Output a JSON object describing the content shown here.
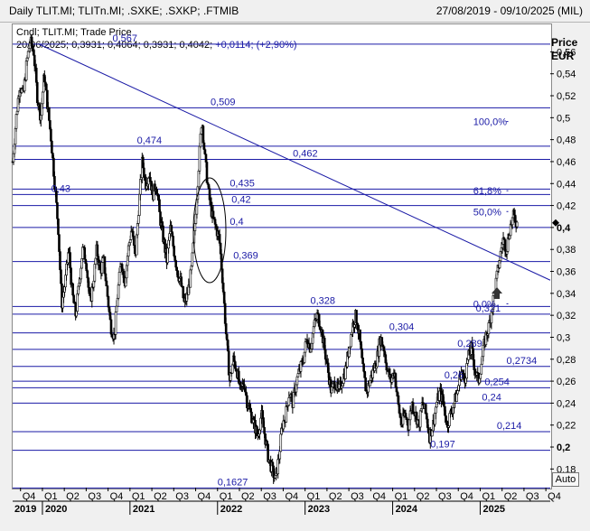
{
  "header": {
    "title": "Daily TLIT.MI; TLITn.MI; .SXKE; .SXKP; .FTMIB",
    "date_range": "27/08/2019 - 09/10/2025 (MIL)"
  },
  "legend": {
    "line1": "Cndl; TLIT.MI; Trade Price",
    "date": "20/06/2025;",
    "ohlc": "0,3931; 0,4064; 0,3931; 0,4042;",
    "change": "+0,0114; (+2,90%)"
  },
  "axis": {
    "price_title": "Price",
    "currency": "EUR",
    "auto_label": "Auto"
  },
  "colors": {
    "candles": "#000000",
    "hline": "#1a1aa6",
    "trend": "#1a1aa6",
    "grid": "#c8c8c8",
    "annotation_text": "#1a1aa6"
  },
  "chart_data": {
    "type": "candlestick",
    "y_ticks": [
      "0,18",
      "0,2",
      "0,22",
      "0,24",
      "0,26",
      "0,28",
      "0,3",
      "0,32",
      "0,34",
      "0,36",
      "0,38",
      "0,4",
      "0,42",
      "0,44",
      "0,46",
      "0,48",
      "0,5",
      "0,52",
      "0,54",
      "0,56"
    ],
    "y_tick_values": [
      0.18,
      0.2,
      0.22,
      0.24,
      0.26,
      0.28,
      0.3,
      0.32,
      0.34,
      0.36,
      0.38,
      0.4,
      0.42,
      0.44,
      0.46,
      0.48,
      0.5,
      0.52,
      0.54,
      0.56
    ],
    "ylim": [
      0.163,
      0.585
    ],
    "xlim": [
      2019.66,
      2025.8
    ],
    "x_quarter_labels": [
      "Q4",
      "Q1",
      "Q2",
      "Q3",
      "Q4",
      "Q1",
      "Q2",
      "Q3",
      "Q4",
      "Q1",
      "Q2",
      "Q3",
      "Q4",
      "Q1",
      "Q2",
      "Q3",
      "Q4",
      "Q1",
      "Q2",
      "Q3",
      "Q4",
      "Q1",
      "Q2",
      "Q3",
      "Q4"
    ],
    "x_year_labels": [
      "2019",
      "2020",
      "2021",
      "2022",
      "2023",
      "2024",
      "2025"
    ],
    "horizontal_levels": [
      {
        "label": "0,567",
        "value": 0.567
      },
      {
        "label": "0,509",
        "value": 0.509
      },
      {
        "label": "0,474",
        "value": 0.474
      },
      {
        "label": "0,462",
        "value": 0.462
      },
      {
        "label": "0,435",
        "value": 0.435
      },
      {
        "label": "0,43",
        "value": 0.43
      },
      {
        "label": "0,42",
        "value": 0.42
      },
      {
        "label": "0,4",
        "value": 0.4
      },
      {
        "label": "0,369",
        "value": 0.369
      },
      {
        "label": "0,328",
        "value": 0.328
      },
      {
        "label": "0,321",
        "value": 0.321
      },
      {
        "label": "0,304",
        "value": 0.304
      },
      {
        "label": "0,289",
        "value": 0.289
      },
      {
        "label": "0,2734",
        "value": 0.2734
      },
      {
        "label": "0,26",
        "value": 0.26
      },
      {
        "label": "0,254",
        "value": 0.254
      },
      {
        "label": "0,24",
        "value": 0.24
      },
      {
        "label": "0,214",
        "value": 0.214
      },
      {
        "label": "0,197",
        "value": 0.197
      },
      {
        "label": "0,1627",
        "value": 0.1627
      }
    ],
    "fib_levels": [
      {
        "label": "100,0%",
        "value": 0.4965
      },
      {
        "label": "61,8%",
        "value": 0.4335
      },
      {
        "label": "50,0%",
        "value": 0.4145
      },
      {
        "label": "0,0%",
        "value": 0.3305
      }
    ],
    "trendline": {
      "x": [
        2019.96,
        2025.8
      ],
      "y": [
        0.567,
        0.352
      ]
    },
    "last_price": 0.4042,
    "price_path": [
      [
        2019.66,
        0.46
      ],
      [
        2019.7,
        0.5
      ],
      [
        2019.74,
        0.53
      ],
      [
        2019.78,
        0.52
      ],
      [
        2019.82,
        0.55
      ],
      [
        2019.86,
        0.57
      ],
      [
        2019.9,
        0.56
      ],
      [
        2019.94,
        0.52
      ],
      [
        2019.98,
        0.5
      ],
      [
        2020.02,
        0.54
      ],
      [
        2020.06,
        0.51
      ],
      [
        2020.1,
        0.48
      ],
      [
        2020.14,
        0.44
      ],
      [
        2020.18,
        0.4
      ],
      [
        2020.22,
        0.33
      ],
      [
        2020.26,
        0.35
      ],
      [
        2020.3,
        0.38
      ],
      [
        2020.34,
        0.34
      ],
      [
        2020.38,
        0.32
      ],
      [
        2020.42,
        0.35
      ],
      [
        2020.46,
        0.38
      ],
      [
        2020.5,
        0.37
      ],
      [
        2020.54,
        0.33
      ],
      [
        2020.58,
        0.35
      ],
      [
        2020.62,
        0.38
      ],
      [
        2020.66,
        0.36
      ],
      [
        2020.7,
        0.37
      ],
      [
        2020.74,
        0.34
      ],
      [
        2020.78,
        0.31
      ],
      [
        2020.82,
        0.3
      ],
      [
        2020.86,
        0.34
      ],
      [
        2020.9,
        0.37
      ],
      [
        2020.94,
        0.35
      ],
      [
        2020.98,
        0.38
      ],
      [
        2021.02,
        0.4
      ],
      [
        2021.06,
        0.37
      ],
      [
        2021.1,
        0.42
      ],
      [
        2021.14,
        0.46
      ],
      [
        2021.18,
        0.44
      ],
      [
        2021.22,
        0.45
      ],
      [
        2021.26,
        0.43
      ],
      [
        2021.3,
        0.44
      ],
      [
        2021.34,
        0.41
      ],
      [
        2021.38,
        0.39
      ],
      [
        2021.42,
        0.37
      ],
      [
        2021.46,
        0.4
      ],
      [
        2021.5,
        0.38
      ],
      [
        2021.54,
        0.36
      ],
      [
        2021.58,
        0.35
      ],
      [
        2021.62,
        0.33
      ],
      [
        2021.66,
        0.34
      ],
      [
        2021.7,
        0.36
      ],
      [
        2021.74,
        0.4
      ],
      [
        2021.78,
        0.45
      ],
      [
        2021.82,
        0.5
      ],
      [
        2021.86,
        0.46
      ],
      [
        2021.9,
        0.43
      ],
      [
        2021.94,
        0.41
      ],
      [
        2021.98,
        0.4
      ],
      [
        2022.02,
        0.39
      ],
      [
        2022.06,
        0.35
      ],
      [
        2022.1,
        0.3
      ],
      [
        2022.14,
        0.26
      ],
      [
        2022.18,
        0.28
      ],
      [
        2022.22,
        0.27
      ],
      [
        2022.26,
        0.25
      ],
      [
        2022.3,
        0.26
      ],
      [
        2022.34,
        0.24
      ],
      [
        2022.38,
        0.23
      ],
      [
        2022.42,
        0.22
      ],
      [
        2022.46,
        0.21
      ],
      [
        2022.5,
        0.23
      ],
      [
        2022.54,
        0.21
      ],
      [
        2022.58,
        0.19
      ],
      [
        2022.62,
        0.18
      ],
      [
        2022.66,
        0.17
      ],
      [
        2022.7,
        0.19
      ],
      [
        2022.74,
        0.22
      ],
      [
        2022.78,
        0.23
      ],
      [
        2022.82,
        0.25
      ],
      [
        2022.86,
        0.24
      ],
      [
        2022.9,
        0.26
      ],
      [
        2022.94,
        0.27
      ],
      [
        2022.98,
        0.28
      ],
      [
        2023.02,
        0.3
      ],
      [
        2023.06,
        0.29
      ],
      [
        2023.1,
        0.31
      ],
      [
        2023.14,
        0.32
      ],
      [
        2023.18,
        0.31
      ],
      [
        2023.22,
        0.29
      ],
      [
        2023.26,
        0.27
      ],
      [
        2023.3,
        0.25
      ],
      [
        2023.34,
        0.26
      ],
      [
        2023.38,
        0.25
      ],
      [
        2023.42,
        0.26
      ],
      [
        2023.46,
        0.27
      ],
      [
        2023.5,
        0.29
      ],
      [
        2023.54,
        0.31
      ],
      [
        2023.58,
        0.32
      ],
      [
        2023.62,
        0.3
      ],
      [
        2023.66,
        0.27
      ],
      [
        2023.7,
        0.25
      ],
      [
        2023.74,
        0.26
      ],
      [
        2023.78,
        0.27
      ],
      [
        2023.82,
        0.28
      ],
      [
        2023.86,
        0.3
      ],
      [
        2023.9,
        0.29
      ],
      [
        2023.94,
        0.27
      ],
      [
        2023.98,
        0.26
      ],
      [
        2024.02,
        0.27
      ],
      [
        2024.06,
        0.24
      ],
      [
        2024.1,
        0.22
      ],
      [
        2024.14,
        0.23
      ],
      [
        2024.18,
        0.22
      ],
      [
        2024.22,
        0.24
      ],
      [
        2024.26,
        0.23
      ],
      [
        2024.3,
        0.22
      ],
      [
        2024.34,
        0.24
      ],
      [
        2024.38,
        0.23
      ],
      [
        2024.42,
        0.21
      ],
      [
        2024.46,
        0.22
      ],
      [
        2024.5,
        0.24
      ],
      [
        2024.54,
        0.25
      ],
      [
        2024.58,
        0.24
      ],
      [
        2024.62,
        0.22
      ],
      [
        2024.66,
        0.23
      ],
      [
        2024.7,
        0.24
      ],
      [
        2024.74,
        0.25
      ],
      [
        2024.78,
        0.27
      ],
      [
        2024.82,
        0.26
      ],
      [
        2024.86,
        0.28
      ],
      [
        2024.9,
        0.29
      ],
      [
        2024.94,
        0.27
      ],
      [
        2024.98,
        0.26
      ],
      [
        2025.02,
        0.28
      ],
      [
        2025.06,
        0.3
      ],
      [
        2025.1,
        0.31
      ],
      [
        2025.14,
        0.33
      ],
      [
        2025.18,
        0.35
      ],
      [
        2025.22,
        0.37
      ],
      [
        2025.26,
        0.39
      ],
      [
        2025.3,
        0.38
      ],
      [
        2025.34,
        0.4
      ],
      [
        2025.38,
        0.41
      ],
      [
        2025.42,
        0.404
      ]
    ]
  }
}
